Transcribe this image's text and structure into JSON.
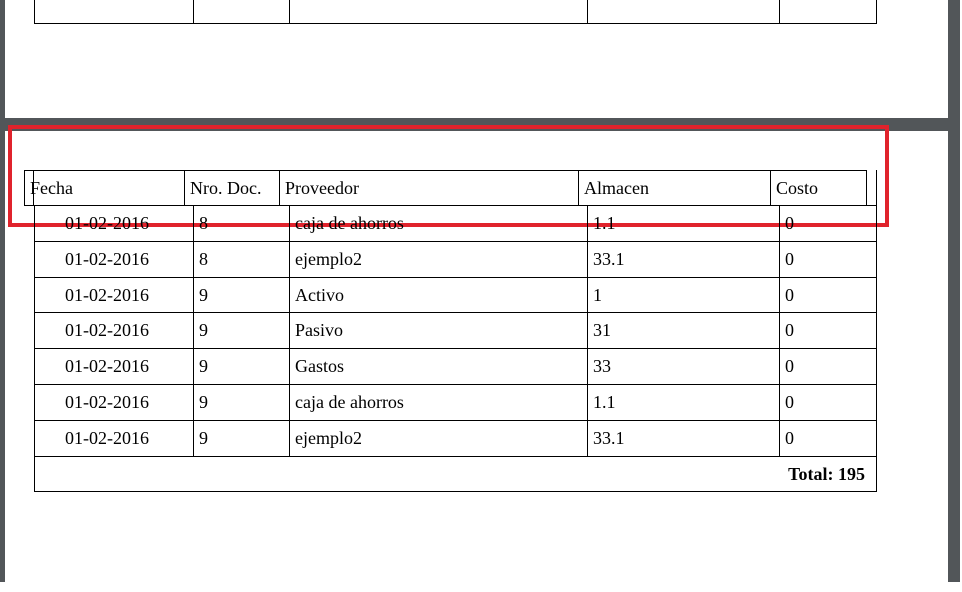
{
  "table": {
    "headers": [
      "Fecha",
      "Nro. Doc.",
      "Proveedor",
      "Almacen",
      "Costo"
    ],
    "rows": [
      [
        "01-02-2016",
        "8",
        "caja de ahorros",
        "1.1",
        "0"
      ],
      [
        "01-02-2016",
        "8",
        "ejemplo2",
        "33.1",
        "0"
      ],
      [
        "01-02-2016",
        "9",
        "Activo",
        "1",
        "0"
      ],
      [
        "01-02-2016",
        "9",
        "Pasivo",
        "31",
        "0"
      ],
      [
        "01-02-2016",
        "9",
        "Gastos",
        "33",
        "0"
      ],
      [
        "01-02-2016",
        "9",
        "caja de ahorros",
        "1.1",
        "0"
      ],
      [
        "01-02-2016",
        "9",
        "ejemplo2",
        "33.1",
        "0"
      ]
    ],
    "total": "Total: 195"
  },
  "colors": {
    "highlight": "#e0232c",
    "viewer_background": "#525659"
  }
}
